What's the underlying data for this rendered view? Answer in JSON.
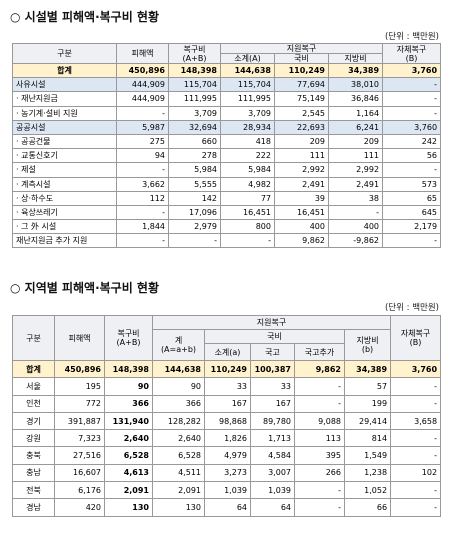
{
  "facility": {
    "title": "○ 시설별 피해액·복구비 현황",
    "unit": "(단위 : 백만원)",
    "header": {
      "category": "구분",
      "damage": "피해액",
      "recovery": "복구비",
      "recovery_sub": "(A+B)",
      "support": "지원복구",
      "subtotal": "소계(A)",
      "national": "국비",
      "local": "지방비",
      "self": "자체복구",
      "self_sub": "(B)"
    },
    "rows": [
      [
        "합계",
        "450,896",
        "148,398",
        "144,638",
        "110,249",
        "34,389",
        "3,760"
      ],
      [
        "사유시설",
        "444,909",
        "115,704",
        "115,704",
        "77,694",
        "38,010",
        "-"
      ],
      [
        "· 재난지원금",
        "444,909",
        "111,995",
        "111,995",
        "75,149",
        "36,846",
        "-"
      ],
      [
        "· 농기계·설비 지원",
        "-",
        "3,709",
        "3,709",
        "2,545",
        "1,164",
        "-"
      ],
      [
        "공공시설",
        "5,987",
        "32,694",
        "28,934",
        "22,693",
        "6,241",
        "3,760"
      ],
      [
        "· 공공건물",
        "275",
        "660",
        "418",
        "209",
        "209",
        "242"
      ],
      [
        "· 교통신호기",
        "94",
        "278",
        "222",
        "111",
        "111",
        "56"
      ],
      [
        "· 제설",
        "-",
        "5,984",
        "5,984",
        "2,992",
        "2,992",
        "-"
      ],
      [
        "· 계측시설",
        "3,662",
        "5,555",
        "4,982",
        "2,491",
        "2,491",
        "573"
      ],
      [
        "· 상·하수도",
        "112",
        "142",
        "77",
        "39",
        "38",
        "65"
      ],
      [
        "· 육상쓰레기",
        "-",
        "17,096",
        "16,451",
        "16,451",
        "-",
        "645"
      ],
      [
        "· 그 外 시설",
        "1,844",
        "2,979",
        "800",
        "400",
        "400",
        "2,179"
      ],
      [
        "재난지원금 추가 지원",
        "-",
        "-",
        "-",
        "9,862",
        "-9,862",
        "-"
      ]
    ]
  },
  "region": {
    "title": "○ 지역별 피해액·복구비 현황",
    "unit": "(단위 : 백만원)",
    "header": {
      "category": "구분",
      "damage": "피해액",
      "recovery": "복구비",
      "recovery_sub": "(A+B)",
      "support": "지원복구",
      "total": "계",
      "total_sub": "(A=a+b)",
      "national": "국비",
      "subtotal": "소계(a)",
      "treasury": "국고",
      "treasury_add": "국고추가",
      "local": "지방비",
      "local_sub": "(b)",
      "self": "자체복구",
      "self_sub": "(B)"
    },
    "rows": [
      [
        "합계",
        "450,896",
        "148,398",
        "144,638",
        "110,249",
        "100,387",
        "9,862",
        "34,389",
        "3,760"
      ],
      [
        "서울",
        "195",
        "90",
        "90",
        "33",
        "33",
        "-",
        "57",
        "-"
      ],
      [
        "인천",
        "772",
        "366",
        "366",
        "167",
        "167",
        "-",
        "199",
        "-"
      ],
      [
        "경기",
        "391,887",
        "131,940",
        "128,282",
        "98,868",
        "89,780",
        "9,088",
        "29,414",
        "3,658"
      ],
      [
        "강원",
        "7,323",
        "2,640",
        "2,640",
        "1,826",
        "1,713",
        "113",
        "814",
        "-"
      ],
      [
        "충북",
        "27,516",
        "6,528",
        "6,528",
        "4,979",
        "4,584",
        "395",
        "1,549",
        "-"
      ],
      [
        "충남",
        "16,607",
        "4,613",
        "4,511",
        "3,273",
        "3,007",
        "266",
        "1,238",
        "102"
      ],
      [
        "전북",
        "6,176",
        "2,091",
        "2,091",
        "1,039",
        "1,039",
        "-",
        "1,052",
        "-"
      ],
      [
        "경남",
        "420",
        "130",
        "130",
        "64",
        "64",
        "-",
        "66",
        "-"
      ]
    ]
  }
}
